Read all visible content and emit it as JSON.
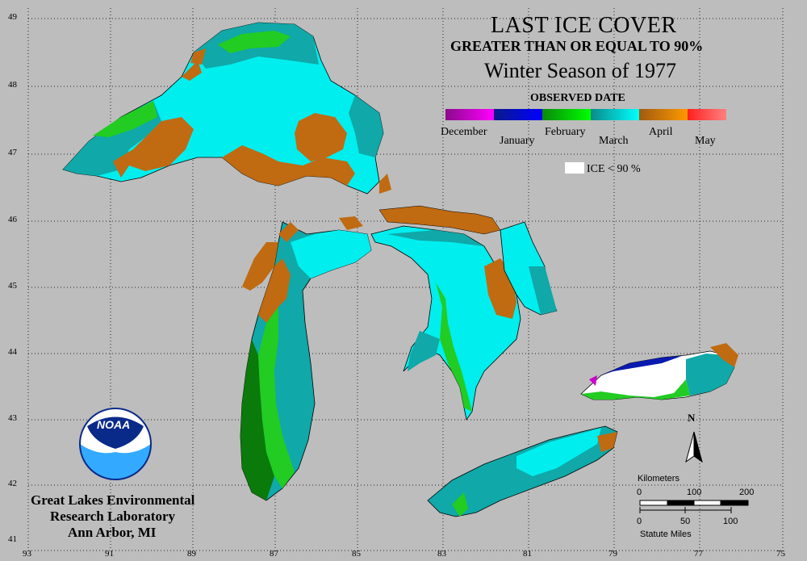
{
  "title": {
    "line1": "LAST ICE COVER",
    "line2": "GREATER THAN OR EQUAL TO 90%",
    "line3": "Winter Season of 1977"
  },
  "legend": {
    "heading": "OBSERVED DATE",
    "months": [
      "December",
      "January",
      "February",
      "March",
      "April",
      "May"
    ],
    "gradient_colors": [
      "#8a0a8a",
      "#ff00ff",
      "#0a1a8a",
      "#0000ff",
      "#0a8a0a",
      "#00ff00",
      "#0a8a8a",
      "#00ffff",
      "#a05a10",
      "#ff9900",
      "#ff2020",
      "#ff8080"
    ],
    "ice_label": "ICE < 90 %",
    "ice_color": "#ffffff"
  },
  "latitude_labels": [
    "49",
    "48",
    "47",
    "46",
    "45",
    "44",
    "43",
    "42",
    "41"
  ],
  "longitude_labels": [
    "93",
    "91",
    "89",
    "87",
    "85",
    "83",
    "81",
    "79",
    "77",
    "75"
  ],
  "institution": [
    "Great Lakes Environmental",
    "Research Laboratory",
    "Ann Arbor, MI"
  ],
  "logo_text": "NOAA",
  "scale": {
    "km_label": "Kilometers",
    "km_ticks": [
      "0",
      "100",
      "200"
    ],
    "mi_ticks": [
      "0",
      "50",
      "100"
    ],
    "mi_label": "Statute Miles"
  },
  "north_label": "N",
  "colors": {
    "background": "#bdbdbd",
    "grid": "#000000",
    "april": "#c06a12",
    "march_cyan": "#00eeee",
    "march_teal": "#10a8a8",
    "feb_green": "#22cc22",
    "feb_dark": "#0a7a0a",
    "january": "#0a1ab0"
  }
}
